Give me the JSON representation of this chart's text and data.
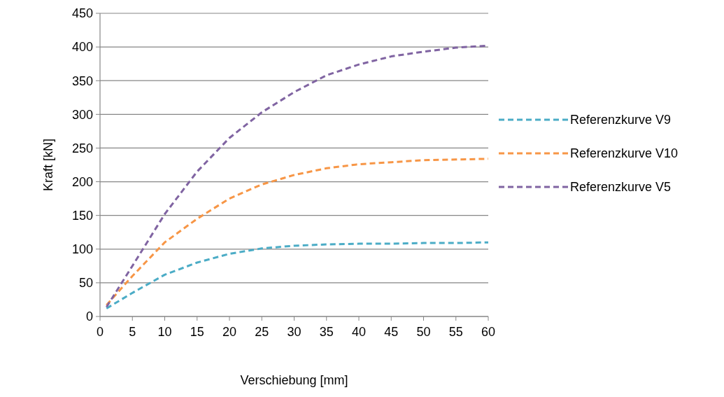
{
  "chart_data": {
    "type": "line",
    "xlabel": "Verschiebung [mm]",
    "ylabel": "Kraft [kN]",
    "x": [
      1,
      5,
      10,
      15,
      20,
      25,
      30,
      35,
      40,
      45,
      50,
      55,
      60
    ],
    "series": [
      {
        "name": "Referenzkurve V9",
        "color": "#4bacc6",
        "values": [
          12,
          35,
          62,
          80,
          93,
          101,
          105,
          107,
          108,
          108,
          109,
          109,
          110
        ]
      },
      {
        "name": "Referenzkurve V10",
        "color": "#f79646",
        "values": [
          17,
          60,
          110,
          145,
          175,
          196,
          210,
          220,
          226,
          229,
          232,
          233,
          234
        ]
      },
      {
        "name": "Referenzkurve V5",
        "color": "#8064a2",
        "values": [
          14,
          75,
          152,
          215,
          265,
          303,
          333,
          358,
          374,
          386,
          393,
          399,
          402
        ]
      }
    ],
    "xlim": [
      0,
      60
    ],
    "xticks": [
      0,
      5,
      10,
      15,
      20,
      25,
      30,
      35,
      40,
      45,
      50,
      55,
      60
    ],
    "ylim": [
      0,
      450
    ],
    "yticks": [
      0,
      50,
      100,
      150,
      200,
      250,
      300,
      350,
      400,
      450
    ],
    "grid": "y",
    "legend": "right",
    "line_style": "dashed",
    "marker": "none"
  }
}
